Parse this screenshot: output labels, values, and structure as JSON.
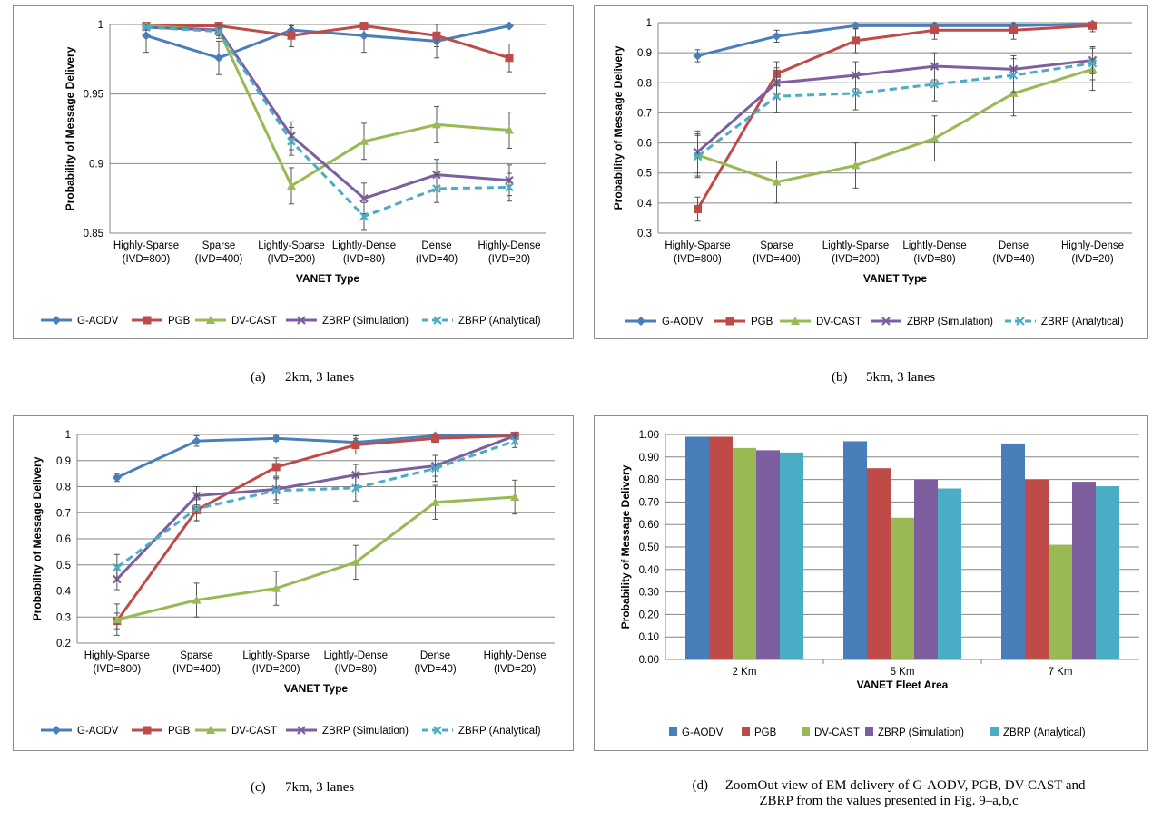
{
  "figure": {
    "captions": {
      "a": {
        "label": "(a)",
        "text": "2km, 3 lanes"
      },
      "b": {
        "label": "(b)",
        "text": "5km, 3 lanes"
      },
      "c": {
        "label": "(c)",
        "text": "7km, 3 lanes"
      },
      "d": {
        "label": "(d)",
        "line1": "ZoomOut view of EM delivery of G-AODV, PGB, DV-CAST and",
        "line2": "ZBRP from the values presented in Fig. 9–a,b,c"
      }
    }
  },
  "styles": {
    "G-AODV": {
      "color": "#4a7ebb",
      "marker": "diamond",
      "dash": false
    },
    "PGB": {
      "color": "#be4b48",
      "marker": "square",
      "dash": false
    },
    "DV-CAST": {
      "color": "#98b954",
      "marker": "triangle",
      "dash": false
    },
    "ZBRP (Simulation)": {
      "color": "#7d5fa0",
      "marker": "x",
      "dash": false
    },
    "ZBRP (Analytical)": {
      "color": "#4bacc6",
      "marker": "x",
      "dash": true
    }
  },
  "chart_data": [
    {
      "id": "a",
      "type": "line",
      "xlabel": "VANET Type",
      "ylabel": "Probability of Message Delivery",
      "ylim": [
        0.85,
        1
      ],
      "yticks": [
        "0.85",
        "0.9",
        "0.95",
        "1"
      ],
      "grid": true,
      "legend": "bottom",
      "categories": [
        [
          "Highly-Sparse",
          "(IVD=800)"
        ],
        [
          "Sparse",
          "(IVD=400)"
        ],
        [
          "Lightly-Sparse",
          "(IVD=200)"
        ],
        [
          "Lightly-Dense",
          "(IVD=80)"
        ],
        [
          "Dense",
          "(IVD=40)"
        ],
        [
          "Highly-Dense",
          "(IVD=20)"
        ]
      ],
      "series": [
        {
          "name": "G-AODV",
          "values": [
            0.992,
            0.976,
            0.996,
            0.992,
            0.988,
            0.999
          ],
          "err": [
            0.012,
            0.012,
            0.003,
            0.012,
            0.012,
            0.001
          ]
        },
        {
          "name": "PGB",
          "values": [
            0.999,
            0.999,
            0.992,
            0.999,
            0.992,
            0.976
          ],
          "err": [
            0.001,
            0.001,
            0.008,
            0.001,
            0.008,
            0.01
          ]
        },
        {
          "name": "DV-CAST",
          "values": [
            0.999,
            0.996,
            0.884,
            0.916,
            0.928,
            0.924
          ],
          "err": [
            0.001,
            0.004,
            0.013,
            0.013,
            0.013,
            0.013
          ]
        },
        {
          "name": "ZBRP (Simulation)",
          "values": [
            0.998,
            0.996,
            0.92,
            0.875,
            0.892,
            0.888
          ],
          "err": [
            0.002,
            0.004,
            0.01,
            0.011,
            0.011,
            0.011
          ]
        },
        {
          "name": "ZBRP (Analytical)",
          "values": [
            0.998,
            0.995,
            0.916,
            0.862,
            0.882,
            0.883
          ],
          "err": [
            0.002,
            0.005,
            0.01,
            0.01,
            0.01,
            0.01
          ]
        }
      ]
    },
    {
      "id": "b",
      "type": "line",
      "xlabel": "VANET Type",
      "ylabel": "Probability of Message Delivery",
      "ylim": [
        0.3,
        1
      ],
      "yticks": [
        "0.3",
        "0.4",
        "0.5",
        "0.6",
        "0.7",
        "0.8",
        "0.9",
        "1"
      ],
      "grid": true,
      "legend": "bottom",
      "categories": [
        [
          "Highly-Sparse",
          "(IVD=800)"
        ],
        [
          "Sparse",
          "(IVD=400)"
        ],
        [
          "Lightly-Sparse",
          "(IVD=200)"
        ],
        [
          "Lightly-Dense",
          "(IVD=80)"
        ],
        [
          "Dense",
          "(IVD=40)"
        ],
        [
          "Highly-Dense",
          "(IVD=20)"
        ]
      ],
      "series": [
        {
          "name": "G-AODV",
          "values": [
            0.89,
            0.955,
            0.99,
            0.99,
            0.99,
            0.995
          ],
          "err": [
            0.02,
            0.02,
            0.01,
            0.01,
            0.01,
            0.005
          ]
        },
        {
          "name": "PGB",
          "values": [
            0.38,
            0.83,
            0.94,
            0.975,
            0.975,
            0.99
          ],
          "err": [
            0.04,
            0.04,
            0.04,
            0.03,
            0.03,
            0.02
          ]
        },
        {
          "name": "DV-CAST",
          "values": [
            0.56,
            0.47,
            0.525,
            0.615,
            0.765,
            0.845
          ],
          "err": [
            0.07,
            0.07,
            0.075,
            0.075,
            0.075,
            0.07
          ]
        },
        {
          "name": "ZBRP (Simulation)",
          "values": [
            0.57,
            0.8,
            0.825,
            0.855,
            0.845,
            0.875
          ],
          "err": [
            0.07,
            0.05,
            0.045,
            0.045,
            0.045,
            0.045
          ]
        },
        {
          "name": "ZBRP (Analytical)",
          "values": [
            0.555,
            0.755,
            0.765,
            0.795,
            0.825,
            0.865
          ],
          "err": [
            0.07,
            0.055,
            0.055,
            0.055,
            0.055,
            0.055
          ]
        }
      ]
    },
    {
      "id": "c",
      "type": "line",
      "xlabel": "VANET Type",
      "ylabel": "Probability of Message Delivery",
      "ylim": [
        0.2,
        1
      ],
      "yticks": [
        "0.2",
        "0.3",
        "0.4",
        "0.5",
        "0.6",
        "0.7",
        "0.8",
        "0.9",
        "1"
      ],
      "grid": true,
      "legend": "bottom",
      "categories": [
        [
          "Highly-Sparse",
          "(IVD=800)"
        ],
        [
          "Sparse",
          "(IVD=400)"
        ],
        [
          "Lightly-Sparse",
          "(IVD=200)"
        ],
        [
          "Lightly-Dense",
          "(IVD=80)"
        ],
        [
          "Dense",
          "(IVD=40)"
        ],
        [
          "Highly-Dense",
          "(IVD=20)"
        ]
      ],
      "series": [
        {
          "name": "G-AODV",
          "values": [
            0.835,
            0.975,
            0.985,
            0.97,
            0.995,
            0.995
          ],
          "err": [
            0.015,
            0.02,
            0.01,
            0.015,
            0.005,
            0.005
          ]
        },
        {
          "name": "PGB",
          "values": [
            0.285,
            0.71,
            0.875,
            0.96,
            0.985,
            0.995
          ],
          "err": [
            0.03,
            0.04,
            0.035,
            0.035,
            0.015,
            0.005
          ]
        },
        {
          "name": "DV-CAST",
          "values": [
            0.29,
            0.365,
            0.41,
            0.51,
            0.74,
            0.76
          ],
          "err": [
            0.06,
            0.065,
            0.065,
            0.065,
            0.065,
            0.065
          ]
        },
        {
          "name": "ZBRP (Simulation)",
          "values": [
            0.445,
            0.765,
            0.79,
            0.845,
            0.88,
            0.995
          ],
          "err": [
            0.04,
            0.035,
            0.04,
            0.04,
            0.04,
            0.005
          ]
        },
        {
          "name": "ZBRP (Analytical)",
          "values": [
            0.49,
            0.715,
            0.785,
            0.795,
            0.87,
            0.975
          ],
          "err": [
            0.05,
            0.05,
            0.05,
            0.05,
            0.05,
            0.025
          ]
        }
      ]
    },
    {
      "id": "d",
      "type": "bar",
      "xlabel": "VANET Fleet Area",
      "ylabel": "Probability of Message Delivery",
      "ylim": [
        0,
        1
      ],
      "yticks": [
        "0.00",
        "0.10",
        "0.20",
        "0.30",
        "0.40",
        "0.50",
        "0.60",
        "0.70",
        "0.80",
        "0.90",
        "1.00"
      ],
      "grid": true,
      "legend": "bottom",
      "categories": [
        "2 Km",
        "5 Km",
        "7 Km"
      ],
      "series": [
        {
          "name": "G-AODV",
          "values": [
            0.99,
            0.97,
            0.96
          ]
        },
        {
          "name": "PGB",
          "values": [
            0.99,
            0.85,
            0.8
          ]
        },
        {
          "name": "DV-CAST",
          "values": [
            0.94,
            0.63,
            0.51
          ]
        },
        {
          "name": "ZBRP (Simulation)",
          "values": [
            0.93,
            0.8,
            0.79
          ]
        },
        {
          "name": "ZBRP (Analytical)",
          "values": [
            0.92,
            0.76,
            0.77
          ]
        }
      ]
    }
  ]
}
